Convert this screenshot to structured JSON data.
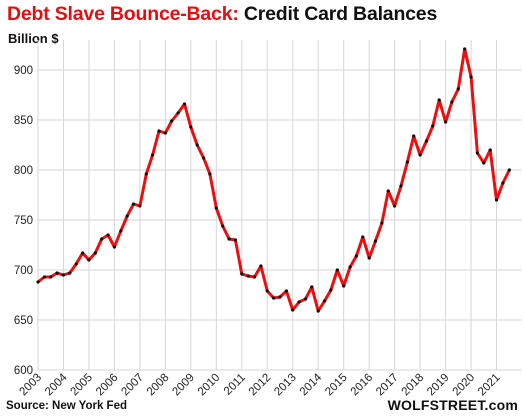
{
  "title_part1": "Debt Slave Bounce-Back:",
  "title_part2": "Credit Card Balances",
  "source": "Source: New York Fed",
  "brand": "WOLFSTREET.com",
  "chart_data": {
    "type": "line",
    "title": "Debt Slave Bounce-Back: Credit Card Balances",
    "ylabel": "Billion $",
    "xlabel": "",
    "ylim": [
      600,
      930
    ],
    "yticks": [
      600,
      650,
      700,
      750,
      800,
      850,
      900
    ],
    "xticks": [
      "2003",
      "2004",
      "2005",
      "2006",
      "2007",
      "2008",
      "2009",
      "2010",
      "2011",
      "2012",
      "2013",
      "2014",
      "2015",
      "2016",
      "2017",
      "2018",
      "2019",
      "2020",
      "2021"
    ],
    "x_range": [
      2003,
      2022
    ],
    "grid": true,
    "line_color": "#e81010",
    "marker_color": "#111111",
    "series": [
      {
        "values": [
          [
            2003.0,
            688
          ],
          [
            2003.25,
            693
          ],
          [
            2003.5,
            693
          ],
          [
            2003.75,
            697
          ],
          [
            2004.0,
            695
          ],
          [
            2004.25,
            697
          ],
          [
            2004.5,
            706
          ],
          [
            2004.75,
            717
          ],
          [
            2005.0,
            710
          ],
          [
            2005.25,
            717
          ],
          [
            2005.5,
            731
          ],
          [
            2005.75,
            735
          ],
          [
            2006.0,
            723
          ],
          [
            2006.25,
            739
          ],
          [
            2006.5,
            754
          ],
          [
            2006.75,
            766
          ],
          [
            2007.0,
            764
          ],
          [
            2007.25,
            796
          ],
          [
            2007.5,
            815
          ],
          [
            2007.75,
            839
          ],
          [
            2008.0,
            837
          ],
          [
            2008.25,
            849
          ],
          [
            2008.5,
            857
          ],
          [
            2008.75,
            866
          ],
          [
            2009.0,
            843
          ],
          [
            2009.25,
            825
          ],
          [
            2009.5,
            812
          ],
          [
            2009.75,
            796
          ],
          [
            2010.0,
            762
          ],
          [
            2010.25,
            744
          ],
          [
            2010.5,
            731
          ],
          [
            2010.75,
            730
          ],
          [
            2011.0,
            696
          ],
          [
            2011.25,
            694
          ],
          [
            2011.5,
            693
          ],
          [
            2011.75,
            704
          ],
          [
            2012.0,
            679
          ],
          [
            2012.25,
            672
          ],
          [
            2012.5,
            673
          ],
          [
            2012.75,
            679
          ],
          [
            2013.0,
            660
          ],
          [
            2013.25,
            668
          ],
          [
            2013.5,
            671
          ],
          [
            2013.75,
            683
          ],
          [
            2014.0,
            659
          ],
          [
            2014.25,
            669
          ],
          [
            2014.5,
            680
          ],
          [
            2014.75,
            700
          ],
          [
            2015.0,
            684
          ],
          [
            2015.25,
            703
          ],
          [
            2015.5,
            714
          ],
          [
            2015.75,
            733
          ],
          [
            2016.0,
            712
          ],
          [
            2016.25,
            729
          ],
          [
            2016.5,
            747
          ],
          [
            2016.75,
            779
          ],
          [
            2017.0,
            764
          ],
          [
            2017.25,
            784
          ],
          [
            2017.5,
            808
          ],
          [
            2017.75,
            834
          ],
          [
            2018.0,
            815
          ],
          [
            2018.25,
            829
          ],
          [
            2018.5,
            844
          ],
          [
            2018.75,
            870
          ],
          [
            2019.0,
            848
          ],
          [
            2019.25,
            868
          ],
          [
            2019.5,
            881
          ],
          [
            2019.75,
            921
          ],
          [
            2020.0,
            893
          ],
          [
            2020.25,
            817
          ],
          [
            2020.5,
            807
          ],
          [
            2020.75,
            820
          ],
          [
            2021.0,
            770
          ],
          [
            2021.25,
            787
          ],
          [
            2021.5,
            800
          ]
        ]
      }
    ]
  }
}
